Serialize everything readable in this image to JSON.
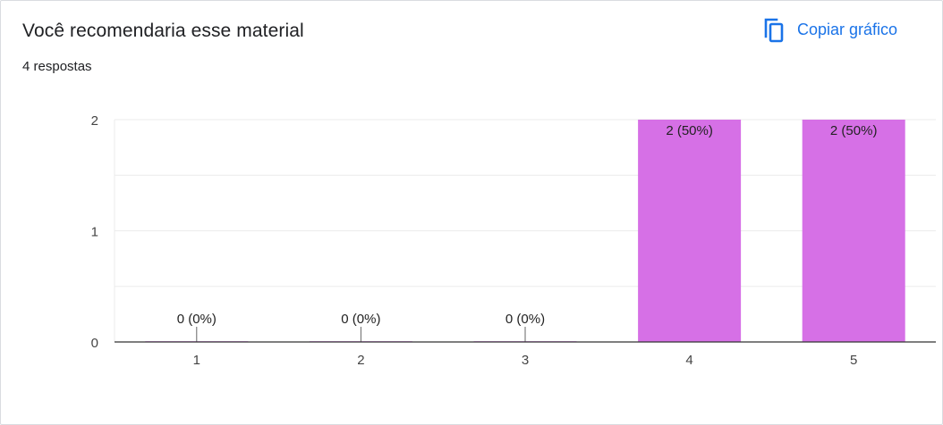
{
  "header": {
    "title": "Você recomendaria esse material",
    "responses": "4 respostas",
    "copy_label": "Copiar gráfico",
    "copy_icon": "copy-icon"
  },
  "colors": {
    "bar": "#d670e6",
    "accent": "#1a73e8",
    "grid": "#ebebeb",
    "axis": "#333333"
  },
  "chart_data": {
    "type": "bar",
    "categories": [
      "1",
      "2",
      "3",
      "4",
      "5"
    ],
    "values": [
      0,
      0,
      0,
      2,
      2
    ],
    "data_labels": [
      "0 (0%)",
      "0 (0%)",
      "0 (0%)",
      "2 (50%)",
      "2 (50%)"
    ],
    "ylim": [
      0,
      2
    ],
    "yticks": [
      "0",
      "1",
      "2"
    ],
    "grid": true,
    "title": "",
    "xlabel": "",
    "ylabel": ""
  }
}
